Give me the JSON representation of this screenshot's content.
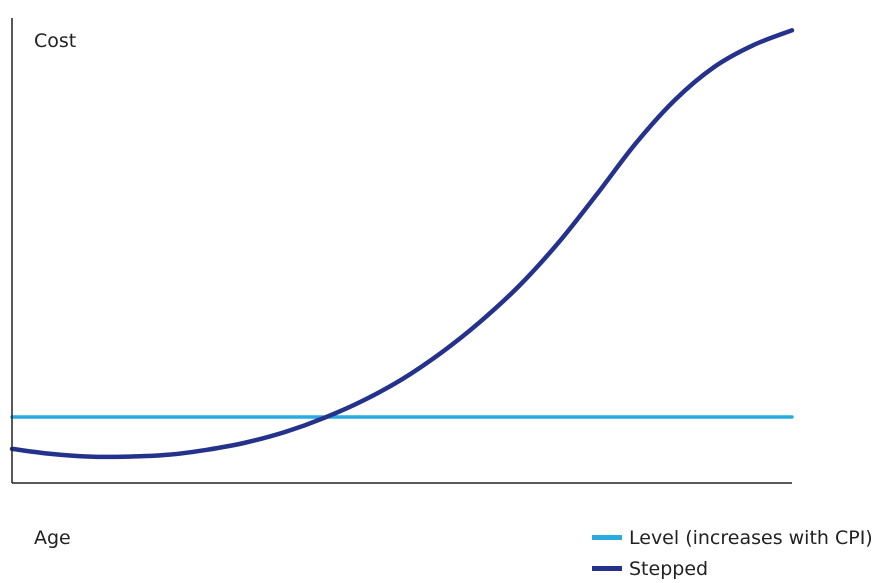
{
  "chart_data": {
    "type": "line",
    "title": "",
    "xlabel": "Age",
    "ylabel": "Cost",
    "grid": false,
    "legend_position": "bottom-right",
    "xlim": [
      0,
      100
    ],
    "ylim": [
      0,
      100
    ],
    "series": [
      {
        "name": "Level (increases with CPI)",
        "color": "#29ABE2",
        "x": [
          0,
          100
        ],
        "y": [
          14.5,
          14.5
        ]
      },
      {
        "name": "Stepped",
        "color": "#25328C",
        "x": [
          0,
          5,
          10,
          15,
          20,
          25,
          30,
          35,
          40,
          45,
          50,
          55,
          60,
          65,
          70,
          75,
          80,
          85,
          90,
          95,
          100
        ],
        "y": [
          7.5,
          6.4,
          5.8,
          5.8,
          6.2,
          7.3,
          8.9,
          11.2,
          14.3,
          18.1,
          22.8,
          28.6,
          35.4,
          43.3,
          52.7,
          63.5,
          74.7,
          84.2,
          91.4,
          96.2,
          99.5
        ]
      }
    ]
  }
}
